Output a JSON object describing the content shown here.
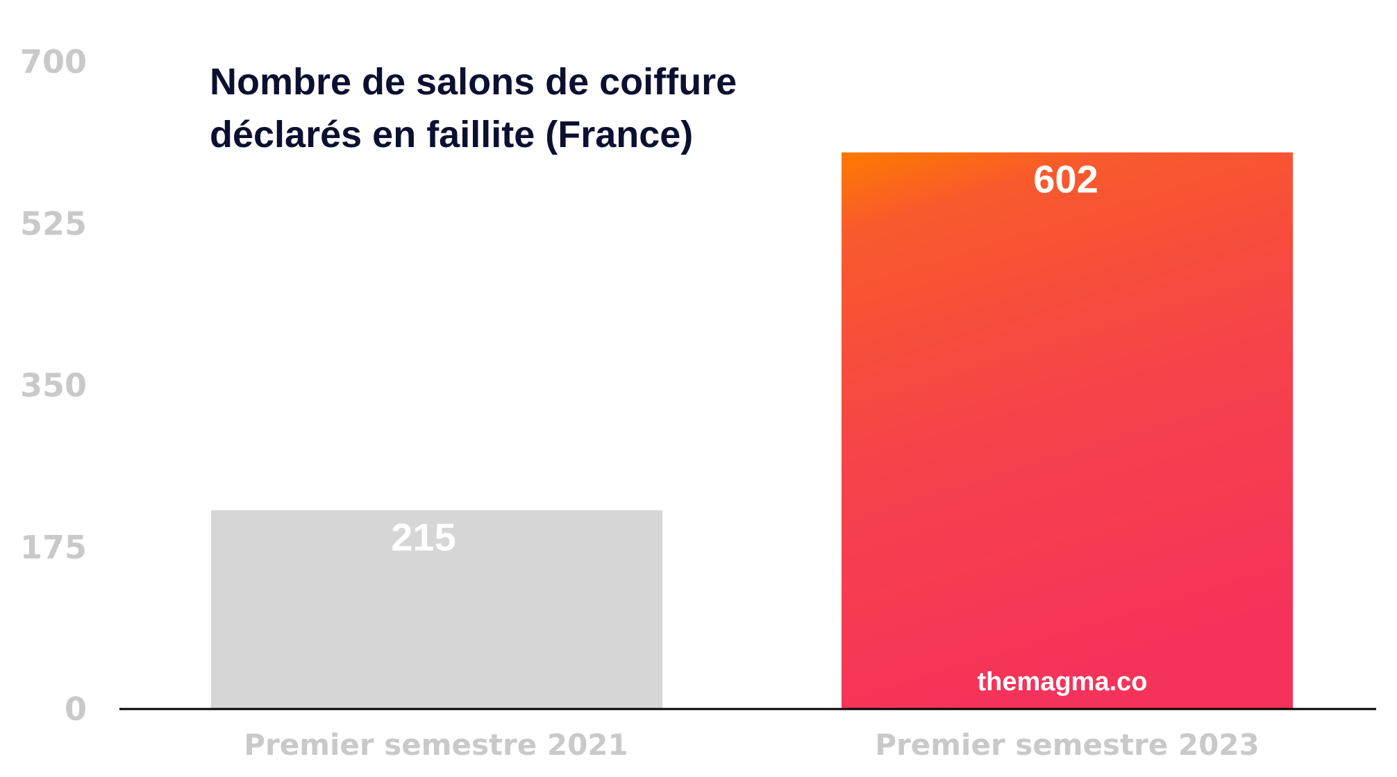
{
  "chart_data": {
    "type": "bar",
    "title_lines": [
      "Nombre de salons de coiffure",
      "déclarés en faillite (France)"
    ],
    "categories": [
      "Premier semestre 2021",
      "Premier semestre 2023"
    ],
    "values": [
      215,
      602
    ],
    "data_labels": [
      "215",
      "602"
    ],
    "ylim": [
      0,
      700
    ],
    "yticks": [
      "0",
      "175",
      "350",
      "525",
      "700"
    ],
    "xlabel": "",
    "ylabel": "",
    "grid": false,
    "legend": "none",
    "colors": {
      "bar_2021": "#d6d6d6",
      "bar_2023_top": "#ff7a00",
      "bar_2023_mid": "#f75230",
      "bar_2023_bottom": "#f5335a",
      "axis": "#000000",
      "tick_text": "#c9c9c9",
      "title_text": "#0c1030"
    }
  },
  "watermark": "themagma.co"
}
